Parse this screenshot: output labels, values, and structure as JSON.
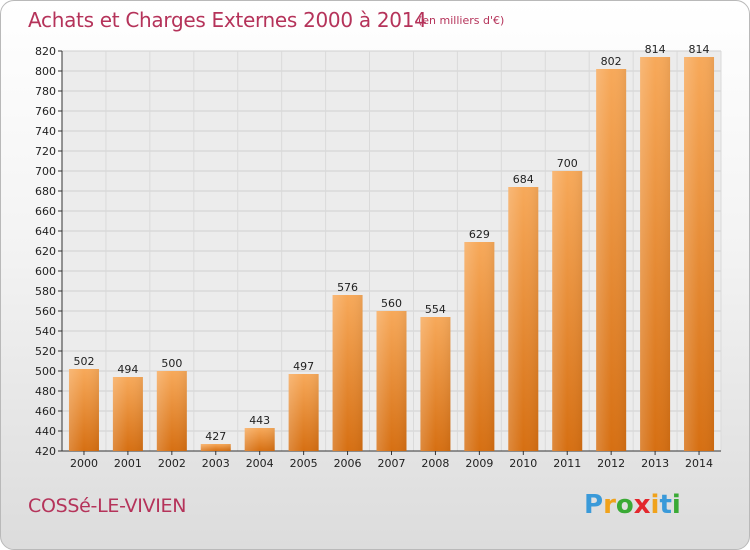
{
  "chart_data": {
    "type": "bar",
    "title": "Achats et Charges Externes 2000 à 2014",
    "subtitle": "(en milliers d'€)",
    "location": "COSSé-LE-VIVIEN",
    "categories": [
      "2000",
      "2001",
      "2002",
      "2003",
      "2004",
      "2005",
      "2006",
      "2007",
      "2008",
      "2009",
      "2010",
      "2011",
      "2012",
      "2013",
      "2014"
    ],
    "values": [
      502,
      494,
      500,
      427,
      443,
      497,
      576,
      560,
      554,
      629,
      684,
      700,
      802,
      814,
      814
    ],
    "ylim": [
      420,
      820
    ],
    "ytick_step": 20,
    "grid": true,
    "bar_color_top": "#f7a95a",
    "bar_color_bottom": "#d66f12",
    "xlabel": "",
    "ylabel": ""
  },
  "logo": {
    "letters": [
      "P",
      "r",
      "o",
      "x",
      "i",
      "t",
      "i"
    ],
    "colors": [
      "#3a9ad9",
      "#f0a21b",
      "#3aaa35",
      "#e3272d",
      "#f0a21b",
      "#3a9ad9",
      "#3aaa35"
    ]
  }
}
